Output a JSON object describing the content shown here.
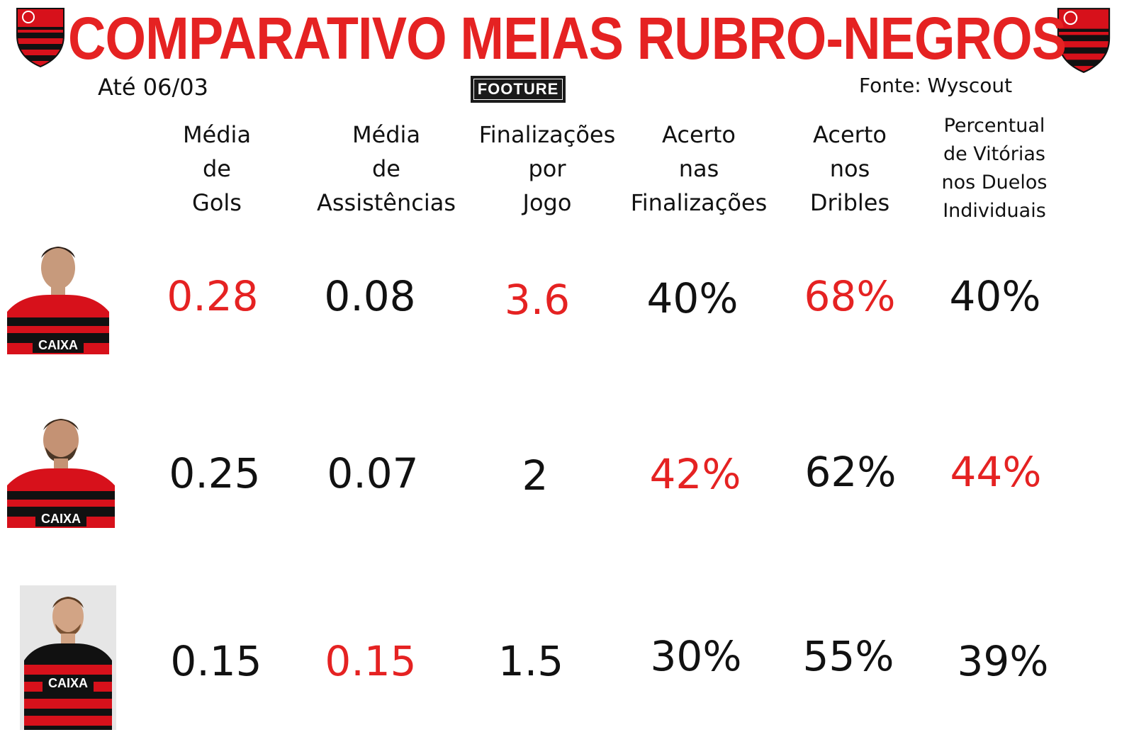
{
  "header": {
    "title": "COMPARATIVO MEIAS RUBRO-NEGROS",
    "date_label": "Até 06/03",
    "brand_logo_text": "FOOTURE",
    "source_label": "Fonte: Wyscout"
  },
  "colors": {
    "accent_red": "#e52222",
    "default_text": "#111111",
    "crest_red": "#d7111b",
    "crest_black": "#111111"
  },
  "chart_data": {
    "type": "table",
    "title": "COMPARATIVO MEIAS RUBRO-NEGROS",
    "columns": [
      "Média\nde\nGols",
      "Média\nde\nAssistências",
      "Finalizações\npor\nJogo",
      "Acerto\nnas\nFinalizações",
      "Acerto\nnos\nDribles",
      "Percentual\nde Vitórias\nnos Duelos\nIndividuais"
    ],
    "rows": [
      {
        "photo": "player-1-photo",
        "values": [
          "0.28",
          "0.08",
          "3.6",
          "40%",
          "68%",
          "40%"
        ],
        "highlight": [
          true,
          false,
          true,
          false,
          true,
          false
        ]
      },
      {
        "photo": "player-2-photo",
        "values": [
          "0.25",
          "0.07",
          "2",
          "42%",
          "62%",
          "44%"
        ],
        "highlight": [
          false,
          false,
          false,
          true,
          false,
          true
        ]
      },
      {
        "photo": "player-3-photo",
        "values": [
          "0.15",
          "0.15",
          "1.5",
          "30%",
          "55%",
          "39%"
        ],
        "highlight": [
          false,
          true,
          false,
          false,
          false,
          false
        ]
      }
    ]
  }
}
